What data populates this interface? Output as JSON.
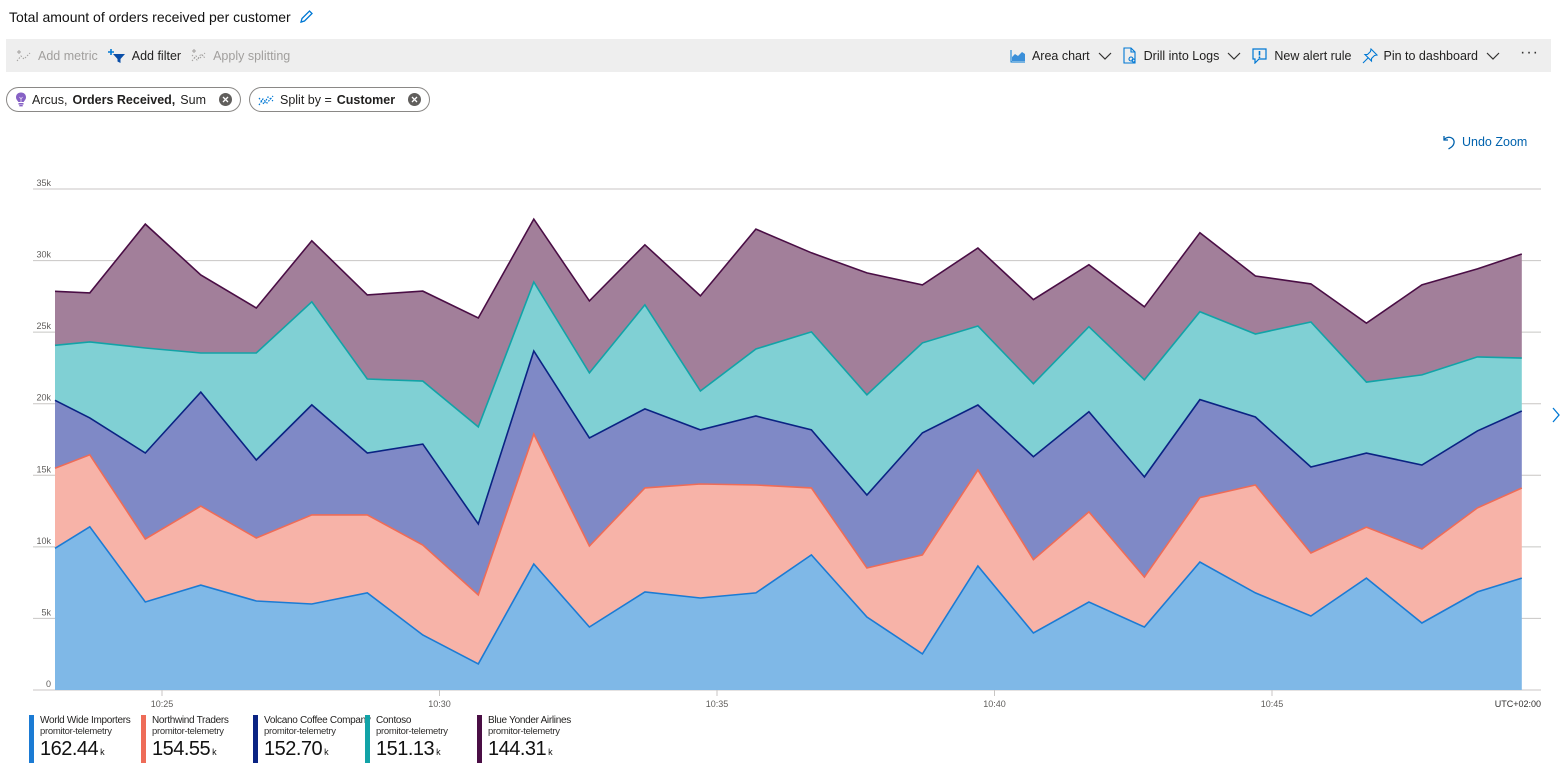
{
  "header": {
    "title": "Total amount of orders received per customer",
    "edit_icon": "pencil-icon"
  },
  "toolbar": {
    "left": [
      {
        "label": "Add metric",
        "icon": "add-metric-icon",
        "disabled": true
      },
      {
        "label": "Add filter",
        "icon": "add-filter-icon",
        "disabled": false
      },
      {
        "label": "Apply splitting",
        "icon": "apply-splitting-icon",
        "disabled": true
      }
    ],
    "right": [
      {
        "label": "Area chart",
        "icon": "area-chart-icon",
        "dropdown": true
      },
      {
        "label": "Drill into Logs",
        "icon": "logs-icon",
        "dropdown": true
      },
      {
        "label": "New alert rule",
        "icon": "alert-icon",
        "dropdown": false
      },
      {
        "label": "Pin to dashboard",
        "icon": "pin-icon",
        "dropdown": true
      }
    ],
    "more_label": "···"
  },
  "pills": {
    "metric": {
      "prefix": "Arcus,",
      "bold": "Orders Received,",
      "suffix": "Sum"
    },
    "split": {
      "prefix": "Split by =",
      "bold": "Customer"
    }
  },
  "undo_zoom": "Undo Zoom",
  "colors": {
    "accent": "#0062ad"
  },
  "chart_data": {
    "type": "area",
    "stacked": true,
    "title": "Total amount of orders received per customer",
    "xlabel": "",
    "ylabel": "",
    "timezone_label": "UTC+02:00",
    "ylim": [
      0,
      35000
    ],
    "y_ticks": [
      0,
      5000,
      10000,
      15000,
      20000,
      25000,
      30000,
      35000
    ],
    "y_tick_labels": [
      "0",
      "5k",
      "10k",
      "15k",
      "20k",
      "25k",
      "30k",
      "35k"
    ],
    "x_ticks": [
      "10:25",
      "10:30",
      "10:35",
      "10:40",
      "10:45"
    ],
    "x_tick_minutes": [
      25,
      30,
      35,
      40,
      45
    ],
    "x_minutes": [
      23.2,
      23.7,
      24.7,
      25.7,
      26.7,
      27.7,
      28.7,
      29.7,
      30.7,
      31.7,
      32.7,
      33.7,
      34.7,
      35.7,
      36.7,
      37.7,
      38.7,
      39.7,
      40.7,
      41.7,
      42.7,
      43.7,
      44.7,
      45.7,
      46.7,
      47.7,
      48.7,
      49.5
    ],
    "grid": true,
    "legend_position": "bottom-left",
    "series": [
      {
        "name": "World Wide Importers",
        "sub": "promitor-telemetry",
        "total": "162.44",
        "unit": "k",
        "color": "#1b7bd4",
        "fill": "#7fb8e7",
        "values": [
          9900,
          11400,
          6150,
          7330,
          6220,
          6010,
          6780,
          3840,
          1820,
          8800,
          4400,
          6850,
          6430,
          6780,
          9440,
          5100,
          2520,
          8660,
          3980,
          6150,
          4400,
          8940,
          6780,
          5170,
          7820,
          4680,
          6850,
          7820
        ]
      },
      {
        "name": "Northwind Traders",
        "sub": "promitor-telemetry",
        "total": "154.55",
        "unit": "k",
        "color": "#ee6c58",
        "fill": "#f7b3a8",
        "values": [
          5590,
          5030,
          4400,
          5520,
          4400,
          6220,
          5450,
          6290,
          4820,
          9080,
          5660,
          7270,
          7960,
          7540,
          4680,
          3420,
          6920,
          6710,
          5120,
          6290,
          3490,
          4500,
          7540,
          4400,
          3560,
          5170,
          5870,
          6290
        ]
      },
      {
        "name": "Volcano Coffee Company",
        "sub": "promitor-telemetry",
        "total": "152.70",
        "unit": "k",
        "color": "#0a2383",
        "fill": "#7f89c6",
        "values": [
          4750,
          2580,
          6010,
          7960,
          5450,
          7690,
          4330,
          7050,
          4960,
          5800,
          7550,
          5520,
          3780,
          4820,
          4050,
          5100,
          8520,
          4540,
          7200,
          7000,
          7000,
          6850,
          4750,
          6010,
          5170,
          5870,
          5380,
          5380
        ]
      },
      {
        "name": "Contoso",
        "sub": "promitor-telemetry",
        "total": "151.13",
        "unit": "k",
        "color": "#12a3a7",
        "fill": "#80d0d4",
        "values": [
          3840,
          5310,
          7330,
          2730,
          7470,
          7200,
          5170,
          4400,
          6780,
          4820,
          4540,
          7270,
          2720,
          4680,
          6850,
          7000,
          6290,
          5520,
          5100,
          5940,
          6780,
          6140,
          5800,
          10130,
          4960,
          6290,
          5170,
          3700
        ]
      },
      {
        "name": "Blue Yonder Airlines",
        "sub": "promitor-telemetry",
        "total": "144.31",
        "unit": "k",
        "color": "#4a0e45",
        "fill": "#a27f9a",
        "values": [
          3770,
          3420,
          8660,
          5450,
          3150,
          4260,
          5870,
          6290,
          7610,
          4400,
          5030,
          4190,
          6640,
          8380,
          5520,
          8520,
          4050,
          5450,
          5870,
          4330,
          5100,
          5520,
          4050,
          2660,
          4120,
          6290,
          6150,
          7270
        ]
      }
    ]
  }
}
